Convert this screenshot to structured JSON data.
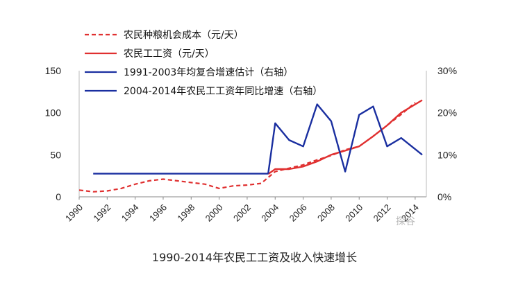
{
  "caption": "1990-2014年农民工工资及收入快速增长",
  "watermark": "探谷",
  "chart_data": {
    "type": "line",
    "x_ticks": [
      "1990",
      "1992",
      "1994",
      "1996",
      "1998",
      "2000",
      "2002",
      "2004",
      "2006",
      "2008",
      "2010",
      "2012",
      "2014"
    ],
    "left_axis": {
      "range": [
        0,
        150
      ],
      "ticks": [
        "0",
        "50",
        "100",
        "150"
      ]
    },
    "right_axis": {
      "range": [
        0,
        30
      ],
      "ticks": [
        "0%",
        "10%",
        "20%",
        "30%"
      ]
    },
    "legend_position": "top-left",
    "series": [
      {
        "name": "农民种粮机会成本（元/天）",
        "axis": "left",
        "style": "dashed",
        "color": "#e03030",
        "points": [
          [
            1990,
            8
          ],
          [
            1991,
            6
          ],
          [
            1992,
            7
          ],
          [
            1993,
            10
          ],
          [
            1994,
            15
          ],
          [
            1995,
            19
          ],
          [
            1996,
            21
          ],
          [
            1997,
            19
          ],
          [
            1998,
            17
          ],
          [
            1999,
            15
          ],
          [
            2000,
            10
          ],
          [
            2001,
            13
          ],
          [
            2002,
            14
          ],
          [
            2003,
            16
          ],
          [
            2004,
            30
          ],
          [
            2005,
            34
          ],
          [
            2006,
            38
          ],
          [
            2007,
            44
          ],
          [
            2008,
            49
          ],
          [
            2009,
            56
          ],
          [
            2010,
            60
          ],
          [
            2011,
            72
          ],
          [
            2012,
            85
          ],
          [
            2013,
            98
          ],
          [
            2014,
            112
          ]
        ]
      },
      {
        "name": "农民工工资（元/天）",
        "axis": "left",
        "style": "solid",
        "color": "#e03030",
        "points": [
          [
            2003.5,
            27
          ],
          [
            2004,
            33
          ],
          [
            2005,
            33
          ],
          [
            2006,
            36
          ],
          [
            2007,
            42
          ],
          [
            2008,
            50
          ],
          [
            2009,
            55
          ],
          [
            2010,
            60
          ],
          [
            2011,
            72
          ],
          [
            2012,
            85
          ],
          [
            2013,
            100
          ],
          [
            2014.5,
            115
          ]
        ]
      },
      {
        "name": "1991-2003年均复合增速估计（右轴）",
        "axis": "right",
        "style": "solid",
        "color": "#1a2fa0",
        "points": [
          [
            1991,
            5.5
          ],
          [
            2003.5,
            5.5
          ]
        ]
      },
      {
        "name": "2004-2014年农民工工资年同比增速（右轴）",
        "axis": "right",
        "style": "solid",
        "color": "#1a2fa0",
        "points": [
          [
            2003.5,
            5.5
          ],
          [
            2004,
            17.5
          ],
          [
            2005,
            13.5
          ],
          [
            2006,
            12
          ],
          [
            2007,
            22
          ],
          [
            2008,
            18
          ],
          [
            2009,
            6
          ],
          [
            2010,
            19.5
          ],
          [
            2011,
            21.5
          ],
          [
            2012,
            12
          ],
          [
            2013,
            14
          ],
          [
            2014.5,
            10
          ]
        ]
      }
    ]
  }
}
